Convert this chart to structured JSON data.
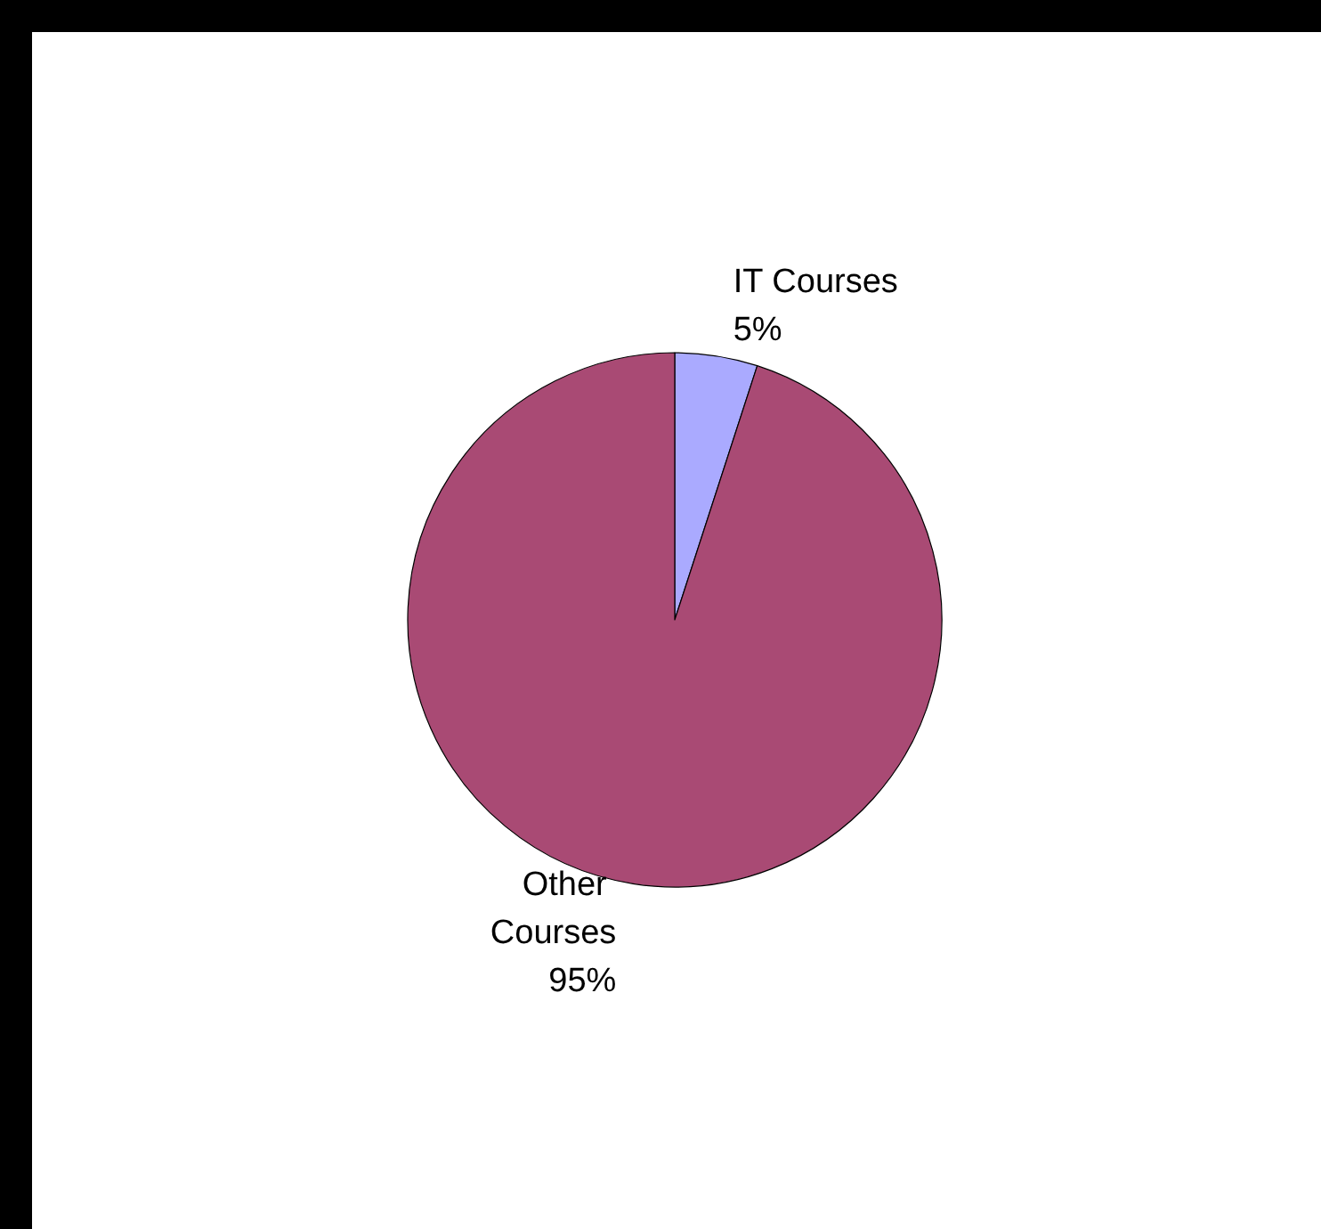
{
  "chart_data": {
    "type": "pie",
    "categories": [
      "IT Courses",
      "Other Courses"
    ],
    "values": [
      5,
      95
    ],
    "colors": [
      "#aaaaff",
      "#a94a74"
    ],
    "value_labels": [
      "5%",
      "95%"
    ]
  }
}
